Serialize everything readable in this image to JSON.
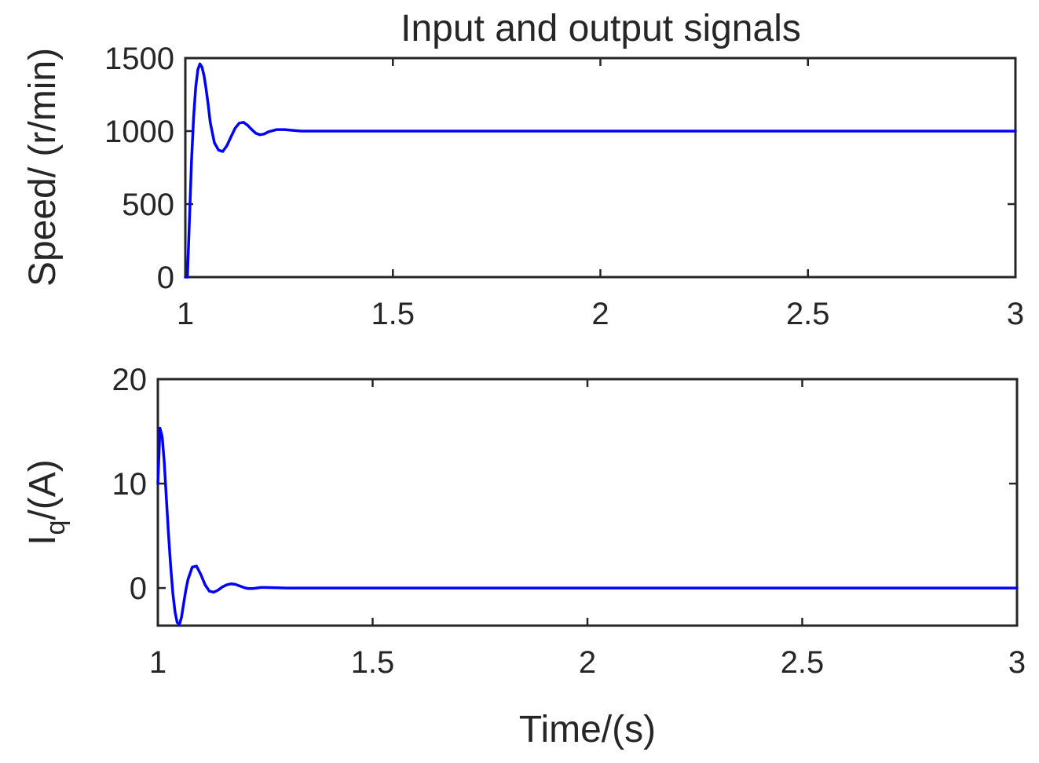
{
  "chart_data": [
    {
      "type": "line",
      "title": "Input and output signals",
      "xlabel": "",
      "ylabel": "Speed/ (r/min)",
      "xlim": [
        1,
        3
      ],
      "ylim": [
        0,
        1500
      ],
      "xticks": [
        1,
        1.5,
        2,
        2.5,
        3
      ],
      "xtick_labels": [
        "1",
        "1.5",
        "2",
        "2.5",
        "3"
      ],
      "yticks": [
        0,
        500,
        1000,
        1500
      ],
      "ytick_labels": [
        "0",
        "500",
        "1000",
        "1500"
      ],
      "grid": false,
      "series": [
        {
          "color": "#0000ff",
          "x": [
            1.0,
            1.005,
            1.01,
            1.015,
            1.02,
            1.025,
            1.03,
            1.035,
            1.04,
            1.045,
            1.05,
            1.055,
            1.06,
            1.07,
            1.08,
            1.09,
            1.1,
            1.11,
            1.12,
            1.13,
            1.14,
            1.15,
            1.16,
            1.17,
            1.18,
            1.19,
            1.2,
            1.22,
            1.24,
            1.26,
            1.28,
            1.3,
            1.35,
            1.4,
            1.5,
            1.75,
            2.0,
            2.25,
            2.5,
            2.75,
            3.0
          ],
          "y": [
            0,
            0,
            400,
            800,
            1100,
            1300,
            1420,
            1460,
            1440,
            1380,
            1290,
            1180,
            1060,
            920,
            870,
            860,
            900,
            960,
            1020,
            1055,
            1060,
            1040,
            1010,
            985,
            975,
            980,
            995,
            1010,
            1010,
            1005,
            1000,
            1000,
            1000,
            1000,
            1000,
            1000,
            1000,
            1000,
            1000,
            1000,
            1000
          ]
        }
      ]
    },
    {
      "type": "line",
      "title": "",
      "xlabel": "Time/(s)",
      "ylabel": "I",
      "ylabel_sub": "q",
      "ylabel_suffix": "/(A)",
      "xlim": [
        1,
        3
      ],
      "ylim": [
        -3.6,
        20
      ],
      "xticks": [
        1,
        1.5,
        2,
        2.5,
        3
      ],
      "xtick_labels": [
        "1",
        "1.5",
        "2",
        "2.5",
        "3"
      ],
      "yticks": [
        0,
        10,
        20
      ],
      "ytick_labels": [
        "0",
        "10",
        "20"
      ],
      "grid": false,
      "series": [
        {
          "color": "#0000ff",
          "x": [
            1.0,
            1.005,
            1.01,
            1.015,
            1.02,
            1.025,
            1.03,
            1.035,
            1.04,
            1.045,
            1.05,
            1.055,
            1.06,
            1.065,
            1.07,
            1.08,
            1.09,
            1.1,
            1.11,
            1.12,
            1.13,
            1.14,
            1.15,
            1.16,
            1.17,
            1.18,
            1.19,
            1.2,
            1.21,
            1.22,
            1.23,
            1.24,
            1.25,
            1.3,
            1.4,
            1.5,
            1.75,
            2.0,
            2.25,
            2.5,
            2.75,
            3.0
          ],
          "y": [
            10,
            15.3,
            14.5,
            12.0,
            8.5,
            5.0,
            2.0,
            -0.5,
            -2.3,
            -3.3,
            -3.5,
            -2.8,
            -1.5,
            -0.2,
            0.8,
            2.0,
            2.1,
            1.3,
            0.3,
            -0.3,
            -0.4,
            -0.2,
            0.1,
            0.3,
            0.4,
            0.35,
            0.2,
            0.05,
            -0.05,
            -0.05,
            0.0,
            0.05,
            0.05,
            0.0,
            0.0,
            0.0,
            0.0,
            0.0,
            0.0,
            0.0,
            0.0,
            0.0
          ]
        }
      ]
    }
  ]
}
